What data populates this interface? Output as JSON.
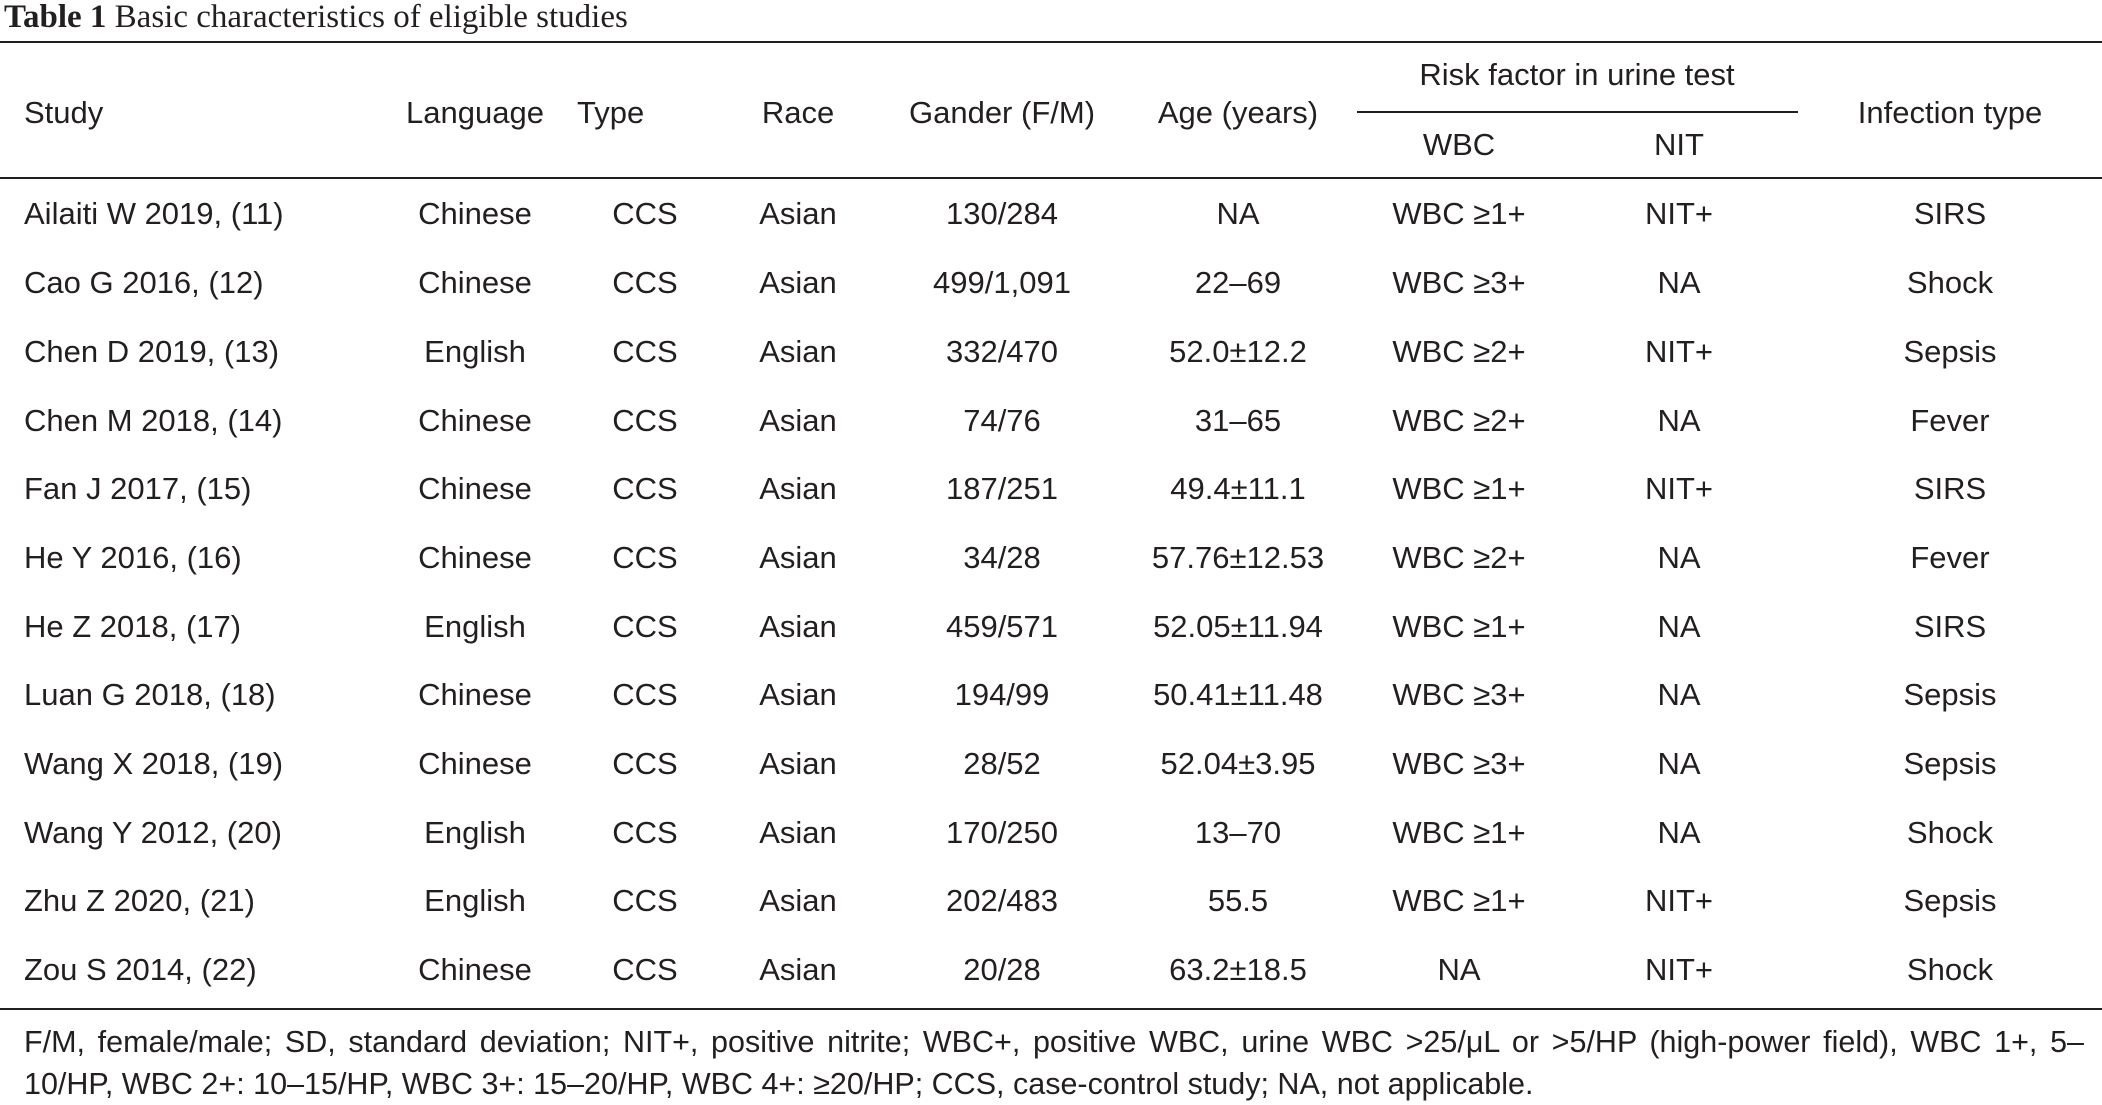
{
  "caption": {
    "label": "Table 1",
    "text": "Basic characteristics of eligible studies"
  },
  "headers": {
    "study": "Study",
    "language": "Language",
    "type": "Type",
    "race": "Race",
    "gender": "Gander (F/M)",
    "age": "Age (years)",
    "risk_group": "Risk factor in urine test",
    "wbc": "WBC",
    "nit": "NIT",
    "infection": "Infection type"
  },
  "rows": [
    {
      "study": "Ailaiti W 2019, (11)",
      "language": "Chinese",
      "type": "CCS",
      "race": "Asian",
      "gender": "130/284",
      "age": "NA",
      "wbc": "WBC ≥1+",
      "nit": "NIT+",
      "infection": "SIRS"
    },
    {
      "study": "Cao G 2016, (12)",
      "language": "Chinese",
      "type": "CCS",
      "race": "Asian",
      "gender": "499/1,091",
      "age": "22–69",
      "wbc": "WBC ≥3+",
      "nit": "NA",
      "infection": "Shock"
    },
    {
      "study": "Chen D 2019, (13)",
      "language": "English",
      "type": "CCS",
      "race": "Asian",
      "gender": "332/470",
      "age": "52.0±12.2",
      "wbc": "WBC ≥2+",
      "nit": "NIT+",
      "infection": "Sepsis"
    },
    {
      "study": "Chen M 2018, (14)",
      "language": "Chinese",
      "type": "CCS",
      "race": "Asian",
      "gender": "74/76",
      "age": "31–65",
      "wbc": "WBC ≥2+",
      "nit": "NA",
      "infection": "Fever"
    },
    {
      "study": "Fan J 2017, (15)",
      "language": "Chinese",
      "type": "CCS",
      "race": "Asian",
      "gender": "187/251",
      "age": "49.4±11.1",
      "wbc": "WBC ≥1+",
      "nit": "NIT+",
      "infection": "SIRS"
    },
    {
      "study": "He Y 2016, (16)",
      "language": "Chinese",
      "type": "CCS",
      "race": "Asian",
      "gender": "34/28",
      "age": "57.76±12.53",
      "wbc": "WBC ≥2+",
      "nit": "NA",
      "infection": "Fever"
    },
    {
      "study": "He Z 2018, (17)",
      "language": "English",
      "type": "CCS",
      "race": "Asian",
      "gender": "459/571",
      "age": "52.05±11.94",
      "wbc": "WBC ≥1+",
      "nit": "NA",
      "infection": "SIRS"
    },
    {
      "study": "Luan G 2018, (18)",
      "language": "Chinese",
      "type": "CCS",
      "race": "Asian",
      "gender": "194/99",
      "age": "50.41±11.48",
      "wbc": "WBC ≥3+",
      "nit": "NA",
      "infection": "Sepsis"
    },
    {
      "study": "Wang X 2018, (19)",
      "language": "Chinese",
      "type": "CCS",
      "race": "Asian",
      "gender": "28/52",
      "age": "52.04±3.95",
      "wbc": "WBC ≥3+",
      "nit": "NA",
      "infection": "Sepsis"
    },
    {
      "study": "Wang Y 2012, (20)",
      "language": "English",
      "type": "CCS",
      "race": "Asian",
      "gender": "170/250",
      "age": "13–70",
      "wbc": "WBC ≥1+",
      "nit": "NA",
      "infection": "Shock"
    },
    {
      "study": "Zhu Z 2020, (21)",
      "language": "English",
      "type": "CCS",
      "race": "Asian",
      "gender": "202/483",
      "age": "55.5",
      "wbc": "WBC ≥1+",
      "nit": "NIT+",
      "infection": "Sepsis"
    },
    {
      "study": "Zou S 2014, (22)",
      "language": "Chinese",
      "type": "CCS",
      "race": "Asian",
      "gender": "20/28",
      "age": "63.2±18.5",
      "wbc": "NA",
      "nit": "NIT+",
      "infection": "Shock"
    }
  ],
  "footnote": "F/M, female/male; SD, standard deviation; NIT+, positive nitrite; WBC+, positive WBC, urine WBC >25/μL or >5/HP (high-power field), WBC 1+, 5–10/HP, WBC 2+: 10–15/HP, WBC 3+: 15–20/HP, WBC 4+: ≥20/HP; CCS, case-control study; NA, not applicable."
}
